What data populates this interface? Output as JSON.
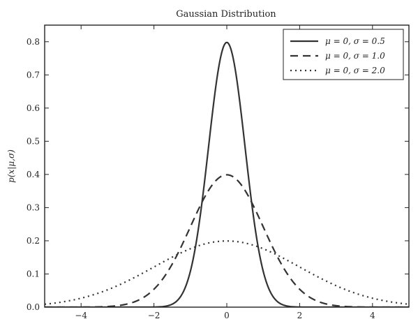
{
  "chart_data": {
    "type": "line",
    "title": "Gaussian Distribution",
    "xlabel": "",
    "ylabel": "p(x|μ,σ)",
    "xlim": [
      -5,
      5
    ],
    "ylim": [
      0,
      0.85
    ],
    "xticks": [
      -4,
      -2,
      0,
      2,
      4
    ],
    "xtick_labels": [
      "−4",
      "−2",
      "0",
      "2",
      "4"
    ],
    "yticks": [
      0.0,
      0.1,
      0.2,
      0.3,
      0.4,
      0.5,
      0.6,
      0.7,
      0.8
    ],
    "ytick_labels": [
      "0.0",
      "0.1",
      "0.2",
      "0.3",
      "0.4",
      "0.5",
      "0.6",
      "0.7",
      "0.8"
    ],
    "grid": false,
    "legend_position": "top-right",
    "series": [
      {
        "name": "μ = 0,  σ = 0.5",
        "mu": 0,
        "sigma": 0.5,
        "style": "solid",
        "color": "#333333"
      },
      {
        "name": "μ = 0,  σ = 1.0",
        "mu": 0,
        "sigma": 1.0,
        "style": "dashed",
        "color": "#333333"
      },
      {
        "name": "μ = 0,  σ = 2.0",
        "mu": 0,
        "sigma": 2.0,
        "style": "dotted",
        "color": "#333333"
      }
    ]
  }
}
